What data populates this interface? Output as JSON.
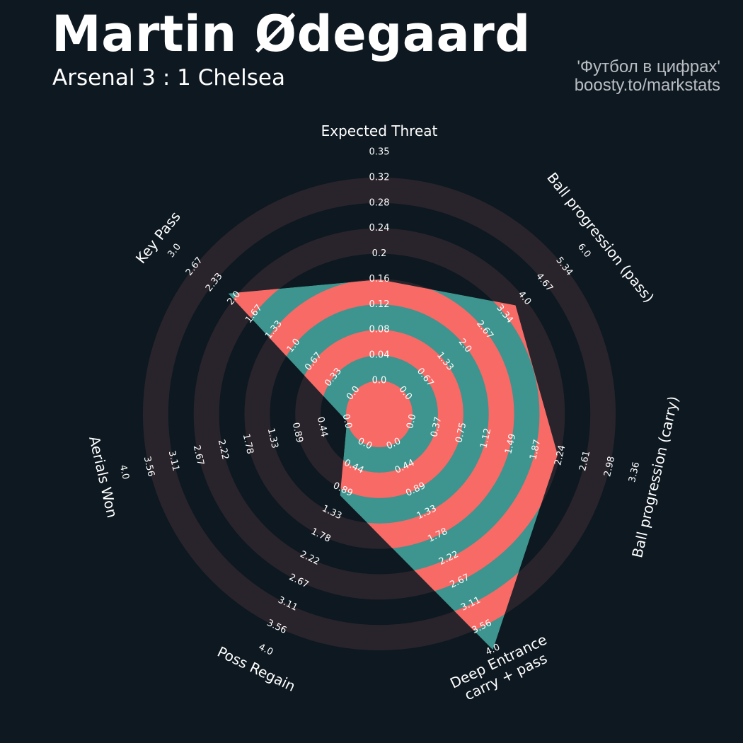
{
  "header": {
    "title": "Martin Ødegaard",
    "subtitle": "Arsenal 3 : 1 Chelsea",
    "credit_line1": "'Футбол в цифрах'",
    "credit_line2": "boosty.to/markstats"
  },
  "colors": {
    "background": "#0e1820",
    "ring_band": "#29242b",
    "radar_fill": "#3e948e",
    "radar_ring": "#f76a66",
    "text": "#ffffff"
  },
  "chart_data": {
    "type": "radar",
    "title": "Martin Ødegaard",
    "params": [
      {
        "name": "Expected Threat",
        "lines": [
          "Expected Threat"
        ],
        "min": 0.0,
        "max": 0.35,
        "value": 0.155,
        "ticks": [
          "0.0",
          "0.04",
          "0.08",
          "0.12",
          "0.16",
          "0.2",
          "0.24",
          "0.28",
          "0.32",
          "0.35"
        ]
      },
      {
        "name": "Ball progression (pass)",
        "lines": [
          "Ball progression (pass)"
        ],
        "min": 0.0,
        "max": 6.0,
        "value": 3.7,
        "ticks": [
          "0.0",
          "0.67",
          "1.33",
          "2.0",
          "2.67",
          "3.34",
          "4.0",
          "4.67",
          "5.34",
          "6.0"
        ]
      },
      {
        "name": "Ball progression (carry)",
        "lines": [
          "Ball progression (carry)"
        ],
        "min": 0.0,
        "max": 3.36,
        "value": 2.2,
        "ticks": [
          "0.0",
          "0.37",
          "0.75",
          "1.12",
          "1.49",
          "1.87",
          "2.24",
          "2.61",
          "2.98",
          "3.36"
        ]
      },
      {
        "name": "Deep Entrance carry + pass",
        "lines": [
          "Deep Entrance",
          "carry + pass"
        ],
        "min": 0.0,
        "max": 4.0,
        "value": 4.0,
        "ticks": [
          "0.0",
          "0.44",
          "0.89",
          "1.33",
          "1.78",
          "2.22",
          "2.67",
          "3.11",
          "3.56",
          "4.0"
        ]
      },
      {
        "name": "Poss Regain",
        "lines": [
          "Poss Regain"
        ],
        "min": 0.0,
        "max": 4.0,
        "value": 1.0,
        "ticks": [
          "0.0",
          "0.44",
          "0.89",
          "1.33",
          "1.78",
          "2.22",
          "2.67",
          "3.11",
          "3.56",
          "4.0"
        ]
      },
      {
        "name": "Aerials Won",
        "lines": [
          "Aerials Won"
        ],
        "min": 0.0,
        "max": 4.0,
        "value": 0.0,
        "ticks": [
          "0.0",
          "0.44",
          "0.89",
          "1.33",
          "1.78",
          "2.22",
          "2.67",
          "3.11",
          "3.56",
          "4.0"
        ]
      },
      {
        "name": "Key Pass",
        "lines": [
          "Key Pass"
        ],
        "min": 0.0,
        "max": 3.0,
        "value": 2.1,
        "ticks": [
          "0.0",
          "0.33",
          "0.67",
          "1.0",
          "1.33",
          "1.67",
          "2.0",
          "2.33",
          "2.67",
          "3.0"
        ]
      }
    ]
  }
}
